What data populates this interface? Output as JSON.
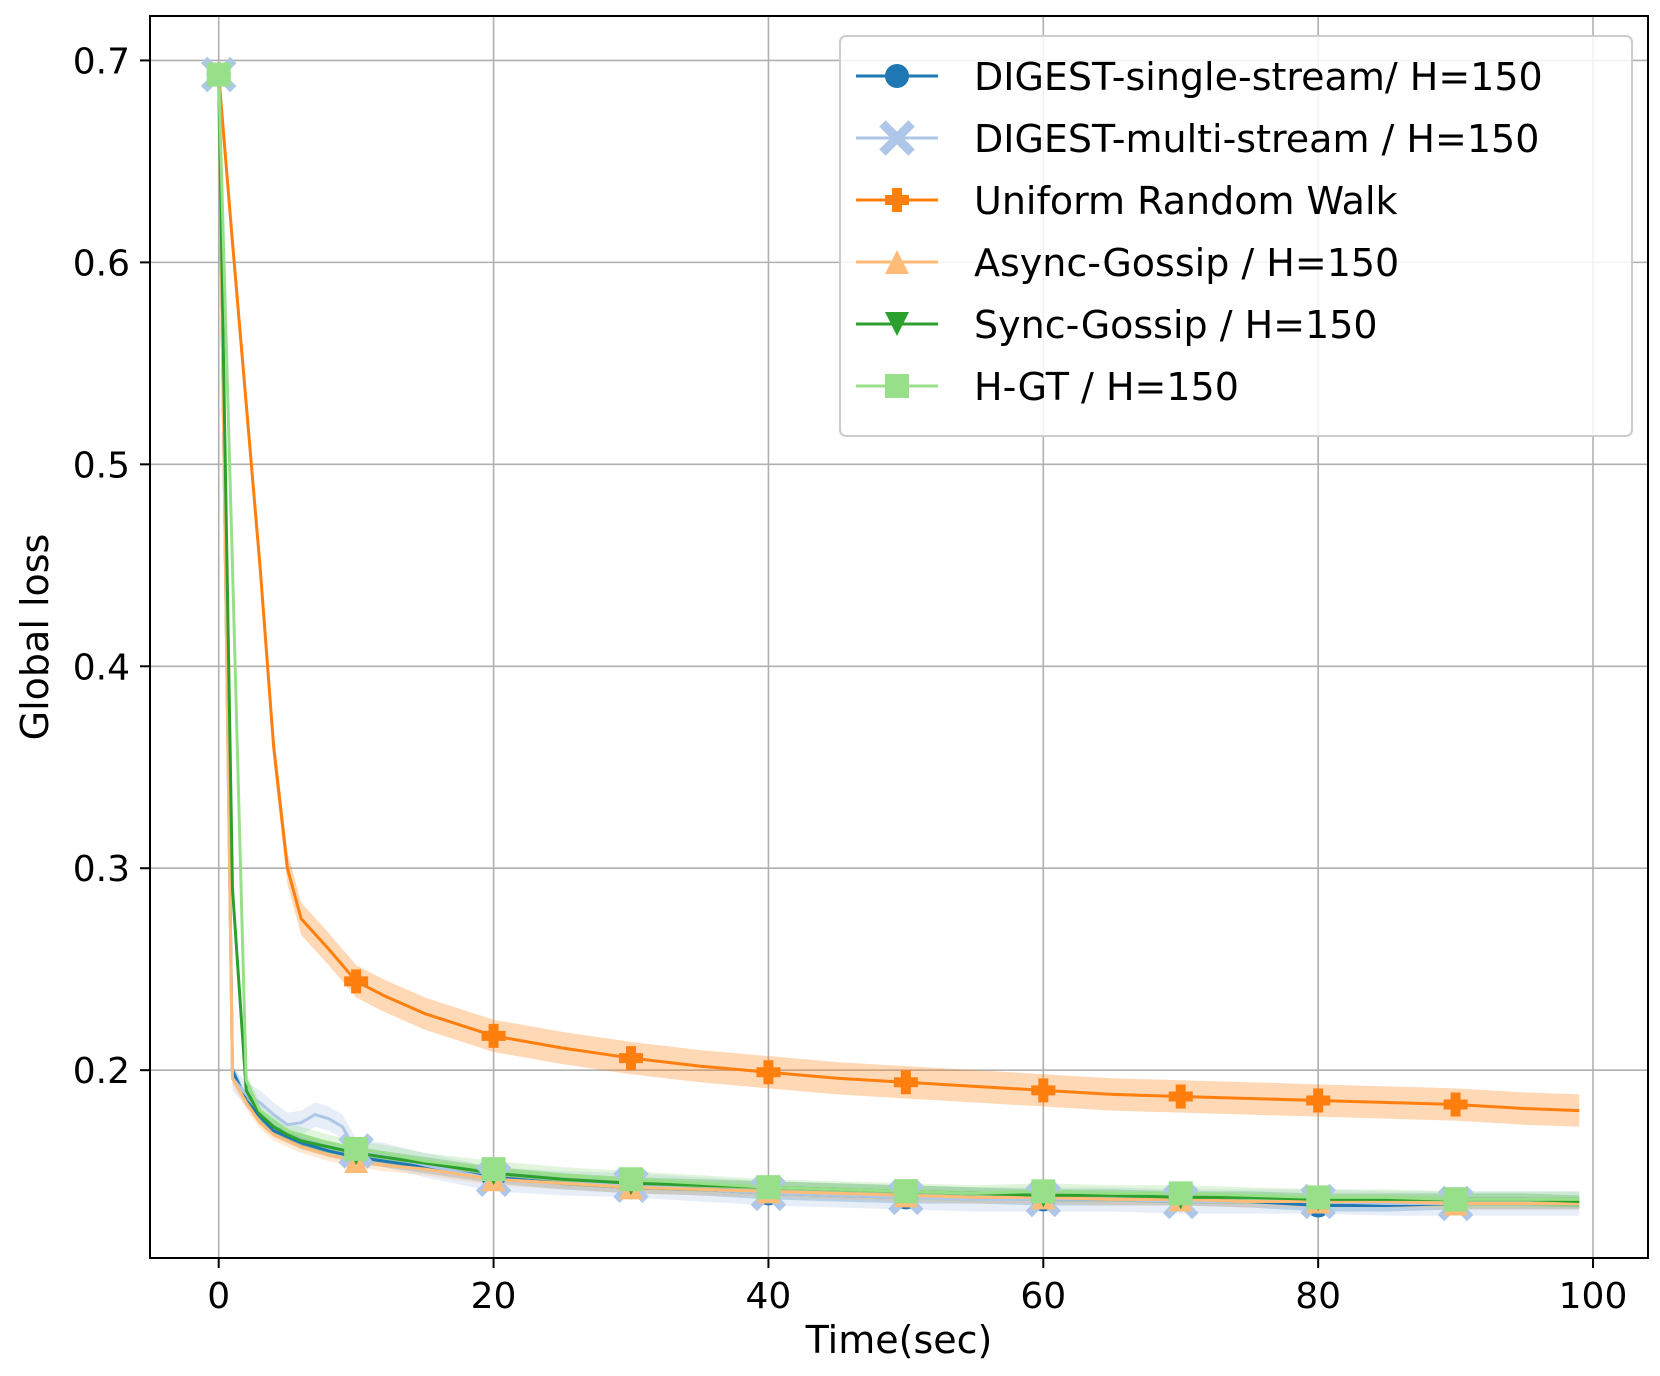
{
  "chart_data": {
    "type": "line",
    "title": "",
    "xlabel": "Time(sec)",
    "ylabel": "Global loss",
    "xlim": [
      -5,
      104
    ],
    "ylim": [
      0.107,
      0.722
    ],
    "xticks": [
      0,
      20,
      40,
      60,
      80,
      100
    ],
    "xtick_labels": [
      "0",
      "20",
      "40",
      "60",
      "80",
      "100"
    ],
    "yticks": [
      0.2,
      0.3,
      0.4,
      0.5,
      0.6,
      0.7
    ],
    "ytick_labels": [
      "0.2",
      "0.3",
      "0.4",
      "0.5",
      "0.6",
      "0.7"
    ],
    "grid": true,
    "legend_position": "top-right",
    "series": [
      {
        "name": "DIGEST-single-stream/ H=150",
        "color": "#1f77b4",
        "marker": "circle",
        "x": [
          0,
          1,
          2,
          3,
          4,
          5,
          6,
          8,
          10,
          12,
          15,
          20,
          25,
          30,
          35,
          40,
          45,
          50,
          55,
          60,
          65,
          70,
          75,
          80,
          85,
          90,
          95,
          99
        ],
        "y": [
          0.693,
          0.2,
          0.185,
          0.177,
          0.17,
          0.167,
          0.164,
          0.16,
          0.157,
          0.155,
          0.152,
          0.147,
          0.144,
          0.142,
          0.141,
          0.139,
          0.138,
          0.137,
          0.137,
          0.136,
          0.136,
          0.136,
          0.135,
          0.133,
          0.133,
          0.134,
          0.134,
          0.134
        ],
        "band": 0.003,
        "markers_at": [
          0,
          10,
          20,
          30,
          40,
          50,
          60,
          70,
          80,
          90
        ]
      },
      {
        "name": "DIGEST-multi-stream / H=150",
        "color": "#aec7e8",
        "marker": "x",
        "x": [
          0,
          1,
          2,
          3,
          4,
          5,
          6,
          7,
          8,
          9,
          10,
          12,
          15,
          20,
          25,
          30,
          35,
          40,
          45,
          50,
          55,
          60,
          65,
          70,
          75,
          80,
          85,
          90,
          95,
          99
        ],
        "y": [
          0.693,
          0.196,
          0.188,
          0.184,
          0.178,
          0.173,
          0.174,
          0.178,
          0.176,
          0.172,
          0.16,
          0.158,
          0.153,
          0.146,
          0.144,
          0.143,
          0.141,
          0.139,
          0.138,
          0.137,
          0.136,
          0.136,
          0.136,
          0.135,
          0.135,
          0.135,
          0.134,
          0.134,
          0.134,
          0.134
        ],
        "band": 0.006,
        "markers_at": [
          0,
          10,
          20,
          30,
          40,
          50,
          60,
          70,
          80,
          90
        ]
      },
      {
        "name": "Uniform Random Walk",
        "color": "#ff7f0e",
        "marker": "plus",
        "x": [
          0,
          1,
          2,
          3,
          4,
          5,
          6,
          8,
          10,
          12,
          15,
          20,
          25,
          30,
          35,
          40,
          45,
          50,
          55,
          60,
          65,
          70,
          75,
          80,
          85,
          90,
          95,
          99
        ],
        "y": [
          0.693,
          0.61,
          0.53,
          0.45,
          0.36,
          0.3,
          0.275,
          0.26,
          0.244,
          0.237,
          0.228,
          0.217,
          0.211,
          0.206,
          0.202,
          0.199,
          0.196,
          0.194,
          0.192,
          0.19,
          0.188,
          0.187,
          0.186,
          0.185,
          0.184,
          0.183,
          0.181,
          0.18
        ],
        "band": 0.008,
        "markers_at": [
          10,
          20,
          30,
          40,
          50,
          60,
          70,
          80,
          90
        ]
      },
      {
        "name": "Async-Gossip / H=150",
        "color": "#ffbb78",
        "marker": "triangle-up",
        "x": [
          0,
          1,
          2,
          3,
          4,
          5,
          6,
          8,
          10,
          12,
          15,
          20,
          25,
          30,
          35,
          40,
          45,
          50,
          55,
          60,
          65,
          70,
          75,
          80,
          85,
          90,
          95,
          99
        ],
        "y": [
          0.693,
          0.196,
          0.184,
          0.174,
          0.168,
          0.165,
          0.162,
          0.158,
          0.155,
          0.153,
          0.151,
          0.146,
          0.144,
          0.142,
          0.141,
          0.14,
          0.139,
          0.138,
          0.137,
          0.137,
          0.136,
          0.136,
          0.135,
          0.135,
          0.135,
          0.134,
          0.134,
          0.134
        ],
        "band": 0.003,
        "markers_at": [
          10,
          20,
          30,
          40,
          50,
          60,
          70,
          80,
          90
        ]
      },
      {
        "name": "Sync-Gossip / H=150",
        "color": "#2ca02c",
        "marker": "triangle-down",
        "x": [
          0,
          1,
          2,
          3,
          4,
          5,
          6,
          8,
          10,
          12,
          15,
          20,
          25,
          30,
          35,
          40,
          45,
          50,
          55,
          60,
          65,
          70,
          75,
          80,
          85,
          90,
          95,
          99
        ],
        "y": [
          0.693,
          0.29,
          0.19,
          0.178,
          0.172,
          0.168,
          0.165,
          0.162,
          0.159,
          0.157,
          0.154,
          0.149,
          0.146,
          0.144,
          0.143,
          0.142,
          0.141,
          0.14,
          0.139,
          0.138,
          0.138,
          0.137,
          0.137,
          0.136,
          0.136,
          0.136,
          0.136,
          0.135
        ],
        "band": 0.003,
        "markers_at": [
          10,
          20,
          30,
          40,
          50,
          60,
          70,
          80,
          90
        ]
      },
      {
        "name": "H-GT / H=150",
        "color": "#98df8a",
        "marker": "square",
        "x": [
          0,
          1,
          2,
          3,
          4,
          5,
          6,
          8,
          10,
          12,
          15,
          20,
          25,
          30,
          35,
          40,
          45,
          50,
          55,
          60,
          65,
          70,
          75,
          80,
          85,
          90,
          95,
          99
        ],
        "y": [
          0.693,
          0.45,
          0.195,
          0.18,
          0.175,
          0.17,
          0.168,
          0.164,
          0.161,
          0.159,
          0.155,
          0.151,
          0.148,
          0.146,
          0.144,
          0.142,
          0.141,
          0.14,
          0.139,
          0.14,
          0.139,
          0.139,
          0.138,
          0.137,
          0.137,
          0.136,
          0.136,
          0.136
        ],
        "band": 0.004,
        "markers_at": [
          0,
          10,
          20,
          30,
          40,
          50,
          60,
          70,
          80,
          90
        ]
      }
    ]
  }
}
